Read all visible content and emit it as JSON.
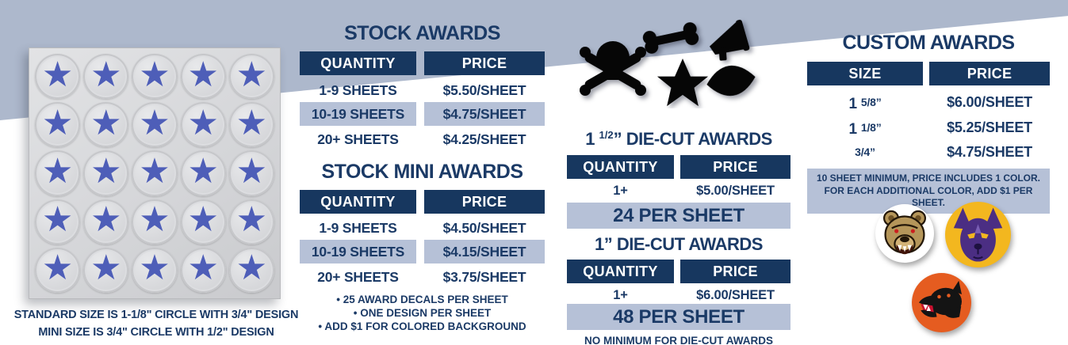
{
  "colors": {
    "navy_header": "#17375f",
    "navy_text": "#1b3a66",
    "band_blue": "#adb8cc",
    "highlight_blue": "#b6c1d7",
    "star_blue": "#4e5eb8",
    "mascot_bear_tan": "#b5965a",
    "mascot_husky_purple": "#4b2e83",
    "mascot_husky_gold": "#f3b71f",
    "mascot_panther_orange": "#e55c20"
  },
  "decal_sheet": {
    "rows": 5,
    "cols": 5,
    "star_glyph": "★"
  },
  "left_captions": {
    "line1": "STANDARD SIZE IS 1-1/8\" CIRCLE WITH 3/4\" DESIGN",
    "line2": "MINI SIZE IS 3/4\" CIRCLE WITH 1/2\" DESIGN"
  },
  "stock_awards": {
    "title": "STOCK AWARDS",
    "col_quantity": "QUANTITY",
    "col_price": "PRICE",
    "rows": [
      {
        "quantity": "1-9 SHEETS",
        "price": "$5.50/SHEET"
      },
      {
        "quantity": "10-19 SHEETS",
        "price": "$4.75/SHEET"
      },
      {
        "quantity": "20+ SHEETS",
        "price": "$4.25/SHEET"
      }
    ]
  },
  "stock_mini_awards": {
    "title": "STOCK MINI AWARDS",
    "col_quantity": "QUANTITY",
    "col_price": "PRICE",
    "rows": [
      {
        "quantity": "1-9 SHEETS",
        "price": "$4.50/SHEET"
      },
      {
        "quantity": "10-19 SHEETS",
        "price": "$4.15/SHEET"
      },
      {
        "quantity": "20+ SHEETS",
        "price": "$3.75/SHEET"
      }
    ],
    "notes": [
      "• 25 AWARD DECALS PER SHEET",
      "• ONE DESIGN PER SHEET",
      "• ADD $1 FOR COLORED BACKGROUND"
    ]
  },
  "die_cut_half": {
    "title_lead": "1 ",
    "title_fraction": "1/2",
    "title_rest": "” DIE-CUT AWARDS",
    "col_quantity": "QUANTITY",
    "col_price": "PRICE",
    "row": {
      "quantity": "1+",
      "price": "$5.00/SHEET"
    },
    "banner": "24 PER SHEET"
  },
  "die_cut_one": {
    "title": "1” DIE-CUT AWARDS",
    "col_quantity": "QUANTITY",
    "col_price": "PRICE",
    "row": {
      "quantity": "1+",
      "price": "$6.00/SHEET"
    },
    "banner": "48 PER SHEET",
    "footnote": "NO MINIMUM FOR DIE-CUT AWARDS"
  },
  "custom_awards": {
    "title": "CUSTOM AWARDS",
    "col_size": "SIZE",
    "col_price": "PRICE",
    "rows": [
      {
        "size_lead": "1 ",
        "size_fraction": "5/8”",
        "price": "$6.00/SHEET"
      },
      {
        "size_lead": "1 ",
        "size_fraction": "1/8”",
        "price": "$5.25/SHEET"
      },
      {
        "size_lead": "",
        "size_fraction": "3/4”",
        "price": "$4.75/SHEET"
      }
    ],
    "note_line1": "10 SHEET MINIMUM, PRICE INCLUDES 1 COLOR.",
    "note_line2": "FOR EACH ADDITIONAL COLOR, ADD $1 PER SHEET."
  },
  "die_cut_shapes": [
    "skull-and-crossbones",
    "bone",
    "megaphone",
    "star",
    "football"
  ],
  "mascots": [
    "bear",
    "husky",
    "panther"
  ]
}
